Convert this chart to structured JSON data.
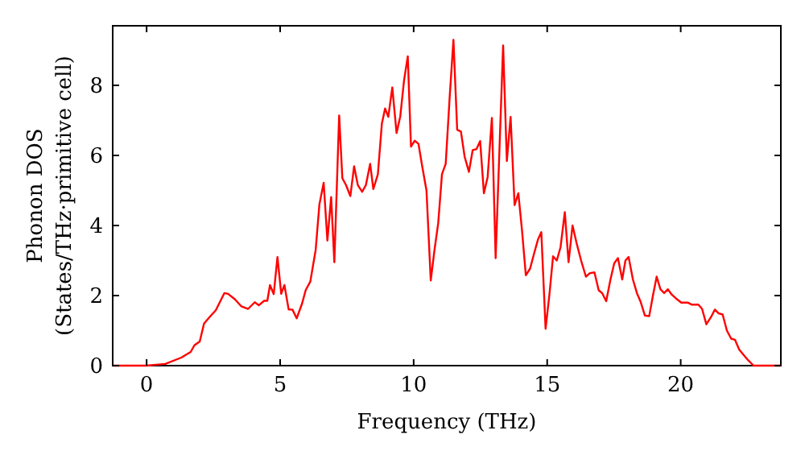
{
  "chart_data": {
    "type": "line",
    "xlabel": "Frequency (THz)",
    "ylabel": "Phonon DOS\n(States/THz·primitive cell)",
    "xlim": [
      -1.27,
      23.75
    ],
    "ylim": [
      0,
      9.7
    ],
    "xticks": [
      0,
      5,
      10,
      15,
      20
    ],
    "yticks": [
      0,
      2,
      4,
      6,
      8
    ],
    "grid": false,
    "marker": "none",
    "line_style": "solid",
    "series": [
      {
        "color": "#ff0000",
        "x": [
          -1.27,
          0,
          0.7,
          1.3,
          1.65,
          1.79,
          1.99,
          2.15,
          2.35,
          2.59,
          2.91,
          3.05,
          3.31,
          3.55,
          3.8,
          4.05,
          4.2,
          4.4,
          4.52,
          4.62,
          4.76,
          4.9,
          5.04,
          5.16,
          5.32,
          5.46,
          5.62,
          5.82,
          5.96,
          6.13,
          6.33,
          6.47,
          6.63,
          6.77,
          6.91,
          7.03,
          7.21,
          7.33,
          7.47,
          7.63,
          7.77,
          7.91,
          8.07,
          8.21,
          8.37,
          8.49,
          8.66,
          8.81,
          8.93,
          9.05,
          9.2,
          9.36,
          9.5,
          9.64,
          9.78,
          9.9,
          10.04,
          10.18,
          10.32,
          10.48,
          10.64,
          10.78,
          10.92,
          11.06,
          11.2,
          11.35,
          11.49,
          11.63,
          11.77,
          11.91,
          12.07,
          12.21,
          12.35,
          12.49,
          12.63,
          12.77,
          12.93,
          13.07,
          13.35,
          13.49,
          13.63,
          13.78,
          13.92,
          14.06,
          14.2,
          14.36,
          14.52,
          14.66,
          14.78,
          14.94,
          15.08,
          15.22,
          15.36,
          15.5,
          15.66,
          15.8,
          15.95,
          16.1,
          16.27,
          16.45,
          16.6,
          16.77,
          16.93,
          17.06,
          17.21,
          17.37,
          17.51,
          17.65,
          17.81,
          17.93,
          18.05,
          18.21,
          18.36,
          18.49,
          18.66,
          18.82,
          18.96,
          19.1,
          19.24,
          19.38,
          19.52,
          19.66,
          19.82,
          20.02,
          20.26,
          20.42,
          20.66,
          20.8,
          20.96,
          21.13,
          21.28,
          21.42,
          21.57,
          21.73,
          21.89,
          22.03,
          22.19,
          22.35,
          22.53,
          22.73,
          23.75
        ],
        "values": [
          0,
          0,
          0.05,
          0.23,
          0.39,
          0.58,
          0.69,
          1.2,
          1.38,
          1.58,
          2.07,
          2.05,
          1.89,
          1.69,
          1.62,
          1.81,
          1.72,
          1.85,
          1.85,
          2.3,
          2.04,
          3.1,
          2.05,
          2.3,
          1.6,
          1.6,
          1.35,
          1.77,
          2.16,
          2.4,
          3.3,
          4.6,
          5.22,
          3.57,
          4.81,
          2.95,
          7.14,
          5.35,
          5.15,
          4.84,
          5.69,
          5.15,
          4.96,
          5.15,
          5.76,
          5.04,
          5.46,
          6.91,
          7.34,
          7.1,
          7.94,
          6.64,
          7.12,
          8.14,
          8.83,
          6.25,
          6.42,
          6.33,
          5.69,
          5.0,
          2.43,
          3.3,
          4.07,
          5.46,
          5.76,
          7.68,
          9.3,
          6.73,
          6.68,
          5.96,
          5.53,
          6.15,
          6.18,
          6.41,
          4.92,
          5.38,
          7.07,
          3.07,
          9.14,
          5.84,
          7.1,
          4.58,
          4.92,
          3.84,
          2.58,
          2.77,
          3.23,
          3.61,
          3.81,
          1.05,
          2.0,
          3.12,
          3.0,
          3.38,
          4.38,
          2.95,
          4.0,
          3.5,
          3.0,
          2.54,
          2.64,
          2.66,
          2.15,
          2.07,
          1.84,
          2.46,
          2.92,
          3.07,
          2.46,
          3.0,
          3.1,
          2.46,
          2.07,
          1.84,
          1.43,
          1.41,
          2.0,
          2.54,
          2.18,
          2.07,
          2.18,
          2.03,
          1.92,
          1.8,
          1.8,
          1.74,
          1.74,
          1.62,
          1.18,
          1.38,
          1.6,
          1.49,
          1.46,
          1.0,
          0.77,
          0.74,
          0.46,
          0.31,
          0.15,
          0,
          0
        ]
      }
    ]
  }
}
